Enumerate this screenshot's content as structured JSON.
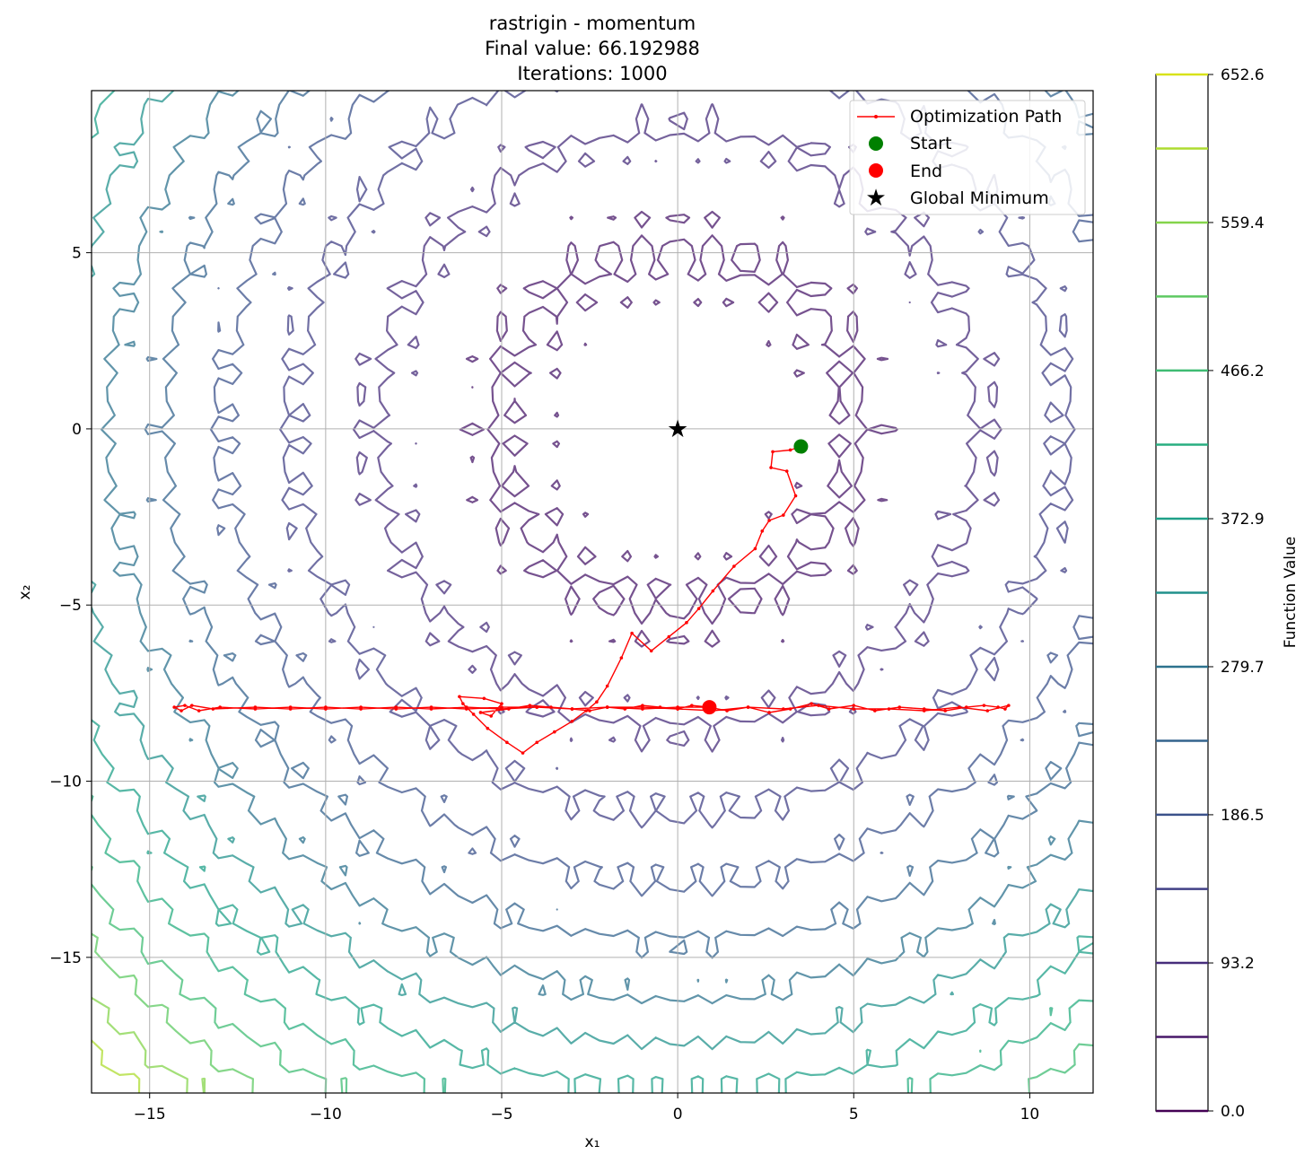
{
  "chart_data": {
    "type": "line",
    "title_lines": [
      "rastrigin - momentum",
      "Final value: 66.192988",
      "Iterations: 1000"
    ],
    "xlabel": "x₁",
    "ylabel": "x₂",
    "xlim": [
      -16.65,
      11.8
    ],
    "ylim": [
      -18.85,
      9.6
    ],
    "xticks": [
      -15,
      -10,
      -5,
      0,
      5,
      10
    ],
    "yticks": [
      -15,
      -10,
      -5,
      0,
      5
    ],
    "xtick_labels": [
      "−15",
      "−10",
      "−5",
      "0",
      "5",
      "10"
    ],
    "ytick_labels": [
      "−15",
      "−10",
      "−5",
      "0",
      "5"
    ],
    "grid": true,
    "legend_position": "top-right",
    "legend": [
      "Optimization Path",
      "Start",
      "End",
      "Global Minimum"
    ],
    "colorbar": {
      "label": "Function Value",
      "min": 0.0,
      "max": 652.6,
      "tick_values": [
        0.0,
        93.2,
        186.5,
        279.7,
        372.9,
        466.2,
        559.4,
        652.6
      ],
      "tick_labels": [
        "0.0",
        "93.2",
        "186.5",
        "279.7",
        "372.9",
        "466.2",
        "559.4",
        "652.6"
      ],
      "levels": [
        0,
        46.6,
        93.2,
        139.8,
        186.5,
        233.1,
        279.7,
        326.3,
        372.9,
        419.5,
        466.2,
        512.8,
        559.4,
        606.0,
        652.6
      ],
      "level_colors": [
        "#440154",
        "#48186a",
        "#472d7b",
        "#424086",
        "#3b528b",
        "#33638d",
        "#2c728e",
        "#21918c",
        "#1fa088",
        "#28ae80",
        "#3fbc73",
        "#5ec962",
        "#84d44b",
        "#addc30",
        "#d8e219",
        "#fde725"
      ]
    },
    "function": "rastrigin",
    "optimizer": "momentum",
    "start": [
      3.5,
      -0.5
    ],
    "end": [
      0.9,
      -7.9
    ],
    "global_minimum": [
      0,
      0
    ],
    "series": [
      {
        "name": "Optimization Path",
        "color": "#ff0000",
        "x": [
          3.5,
          3.2,
          2.7,
          2.65,
          3.1,
          3.35,
          3.0,
          2.6,
          2.4,
          2.2,
          1.6,
          1.0,
          0.6,
          0.25,
          -0.25,
          -0.75,
          -1.3,
          -1.6,
          -2.0,
          -2.3,
          -2.6,
          -3.0,
          -3.5,
          -4.0,
          -4.4,
          -4.85,
          -5.4,
          -5.8,
          -6.1,
          -6.2,
          -5.5,
          -5.0,
          -5.3,
          -5.6,
          -4.8,
          -4.2,
          -3.6,
          -3.0,
          -2.5,
          -2.0,
          -1.5,
          -1.0,
          -0.5,
          0.0,
          0.4,
          0.9,
          1.4,
          2.0,
          2.6,
          3.2,
          3.8,
          4.3,
          5.0,
          5.6,
          6.3,
          7.0,
          7.6,
          8.2,
          8.7,
          9.1,
          9.3,
          9.4,
          8.8,
          8.0,
          7.0,
          6.0,
          5.0,
          4.0,
          3.0,
          2.0,
          1.0,
          0.0,
          -1.0,
          -2.0,
          -3.0,
          -4.0,
          -5.0,
          -6.0,
          -7.0,
          -8.0,
          -9.0,
          -10.0,
          -11.0,
          -12.0,
          -13.0,
          -13.6,
          -14.0,
          -14.3,
          -14.1,
          -13.8,
          -13.2,
          -12.0,
          -11.0,
          -10.0,
          -9.0,
          -8.0,
          -7.0,
          -6.0,
          -5.0,
          -4.0,
          -3.0,
          -2.0,
          -1.0,
          0.0,
          0.9
        ],
        "y": [
          -0.5,
          -0.6,
          -0.65,
          -1.1,
          -1.2,
          -1.9,
          -2.45,
          -2.6,
          -2.9,
          -3.4,
          -3.9,
          -4.6,
          -5.1,
          -5.5,
          -5.9,
          -6.3,
          -5.8,
          -6.5,
          -7.3,
          -7.75,
          -8.0,
          -8.3,
          -8.6,
          -8.9,
          -9.2,
          -8.9,
          -8.5,
          -8.1,
          -7.8,
          -7.6,
          -7.65,
          -7.8,
          -8.15,
          -8.05,
          -7.95,
          -7.85,
          -7.9,
          -7.95,
          -8.0,
          -7.9,
          -7.95,
          -7.85,
          -7.9,
          -7.95,
          -7.85,
          -7.9,
          -8.0,
          -7.9,
          -8.05,
          -7.95,
          -7.8,
          -7.95,
          -7.85,
          -8.0,
          -7.9,
          -7.95,
          -8.0,
          -7.9,
          -7.85,
          -7.9,
          -7.95,
          -7.85,
          -8.0,
          -7.9,
          -8.0,
          -7.95,
          -7.95,
          -7.85,
          -7.95,
          -7.9,
          -8.0,
          -7.95,
          -7.9,
          -7.9,
          -7.95,
          -7.9,
          -7.9,
          -7.95,
          -7.9,
          -7.95,
          -7.9,
          -7.95,
          -7.9,
          -7.95,
          -7.9,
          -8.0,
          -7.85,
          -7.9,
          -8.0,
          -7.85,
          -7.95,
          -7.9,
          -7.95,
          -7.9,
          -7.95,
          -7.9,
          -7.95,
          -7.9,
          -7.95,
          -7.9,
          -7.95,
          -7.9,
          -7.95,
          -7.9,
          -7.9
        ]
      }
    ]
  }
}
